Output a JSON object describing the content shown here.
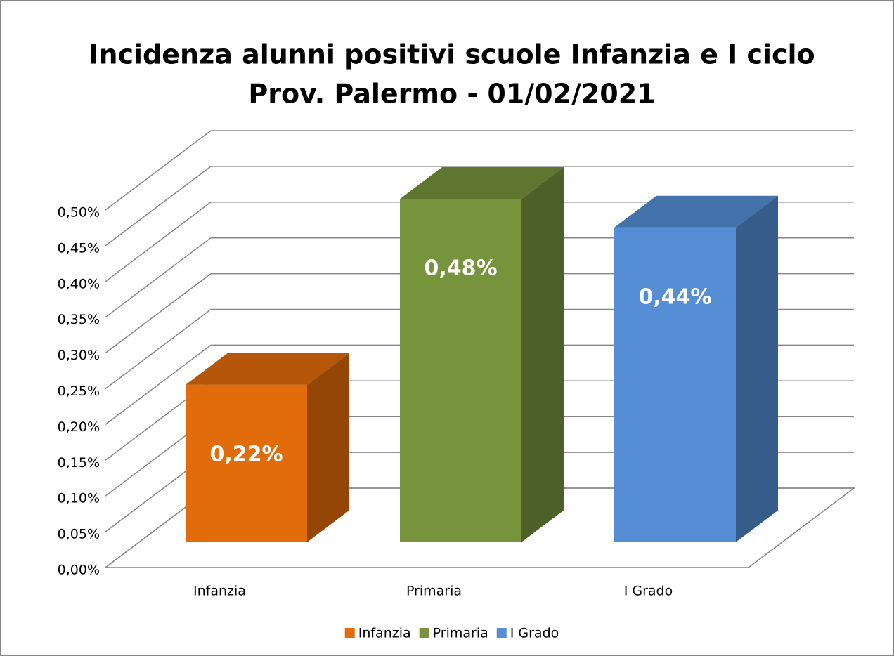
{
  "chart_data": {
    "type": "bar3d",
    "title": "Incidenza alunni positivi scuole Infanzia e I ciclo",
    "subtitle": "Prov. Palermo - 01/02/2021",
    "categories": [
      "Infanzia",
      "Primaria",
      "I Grado"
    ],
    "values": [
      0.22,
      0.48,
      0.44
    ],
    "value_labels": [
      "0,22%",
      "0,48%",
      "0,44%"
    ],
    "colors": [
      "#e36c0a",
      "#77933c",
      "#558ed5"
    ],
    "ylim": [
      0,
      0.5
    ],
    "yticks": [
      {
        "value": 0,
        "label": "0,00%"
      },
      {
        "value": 0.05,
        "label": "0,05%"
      },
      {
        "value": 0.1,
        "label": "0,10%"
      },
      {
        "value": 0.15,
        "label": "0,15%"
      },
      {
        "value": 0.2,
        "label": "0,20%"
      },
      {
        "value": 0.25,
        "label": "0,25%"
      },
      {
        "value": 0.3,
        "label": "0,30%"
      },
      {
        "value": 0.35,
        "label": "0,35%"
      },
      {
        "value": 0.4,
        "label": "0,40%"
      },
      {
        "value": 0.45,
        "label": "0,45%"
      },
      {
        "value": 0.5,
        "label": "0,50%"
      }
    ],
    "grid": true,
    "legend": "bottom"
  }
}
